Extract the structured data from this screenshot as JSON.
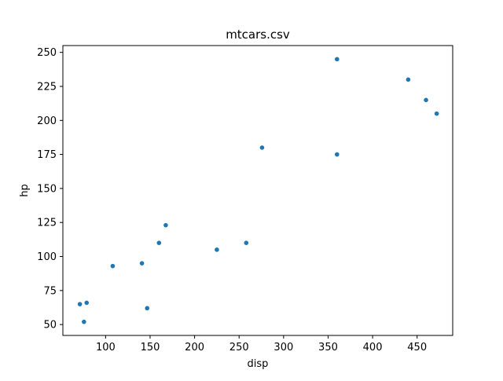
{
  "chart_data": {
    "type": "scatter",
    "title": "mtcars.csv",
    "xlabel": "disp",
    "ylabel": "hp",
    "xlim": [
      52,
      490
    ],
    "ylim": [
      42,
      255
    ],
    "xticks": [
      100,
      150,
      200,
      250,
      300,
      350,
      400,
      450
    ],
    "yticks": [
      50,
      75,
      100,
      125,
      150,
      175,
      200,
      225,
      250
    ],
    "grid": false,
    "legend": "none",
    "marker_color": "#1f77b4",
    "series": [
      {
        "x": [
          71.1,
          75.7,
          78.7,
          108,
          140.8,
          146.7,
          160,
          167.6,
          225,
          258,
          275.8,
          360,
          360,
          440,
          460,
          472
        ],
        "y": [
          65,
          52,
          66,
          93,
          95,
          62,
          110,
          123,
          105,
          110,
          180,
          175,
          245,
          230,
          215,
          205
        ]
      }
    ]
  }
}
